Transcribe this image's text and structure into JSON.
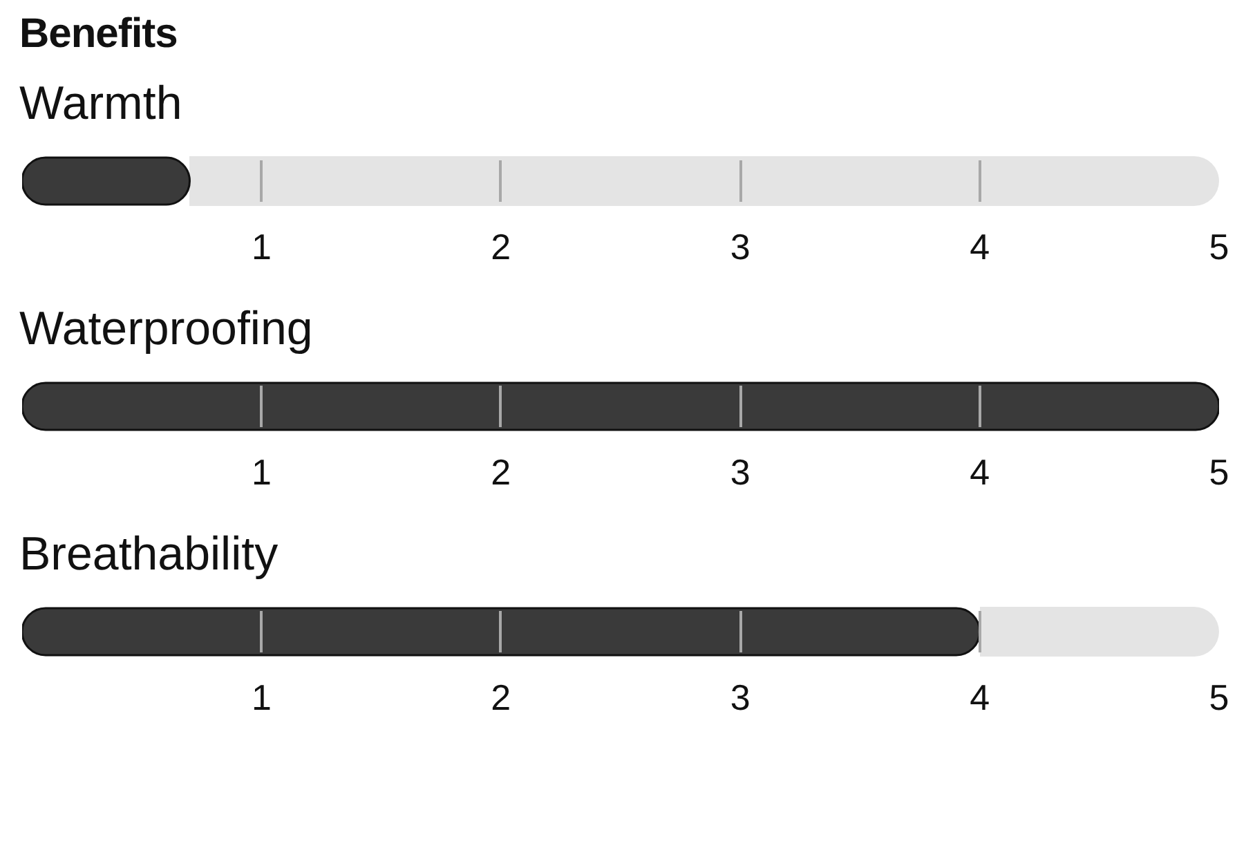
{
  "chart_data": [
    {
      "type": "bar",
      "orientation": "horizontal",
      "title": "Benefits",
      "categories": [
        "Warmth"
      ],
      "values": [
        0.7
      ],
      "color": "#3a3a3a",
      "xlim": [
        0,
        5
      ],
      "xticks": [
        1,
        2,
        3,
        4,
        5
      ]
    },
    {
      "type": "bar",
      "orientation": "horizontal",
      "categories": [
        "Waterproofing"
      ],
      "values": [
        5
      ],
      "color": "#3a3a3a",
      "xlim": [
        0,
        5
      ],
      "xticks": [
        1,
        2,
        3,
        4,
        5
      ]
    },
    {
      "type": "bar",
      "orientation": "horizontal",
      "categories": [
        "Breathability"
      ],
      "values": [
        4
      ],
      "color": "#3a3a3a",
      "xlim": [
        0,
        5
      ],
      "xticks": [
        1,
        2,
        3,
        4,
        5
      ]
    }
  ]
}
